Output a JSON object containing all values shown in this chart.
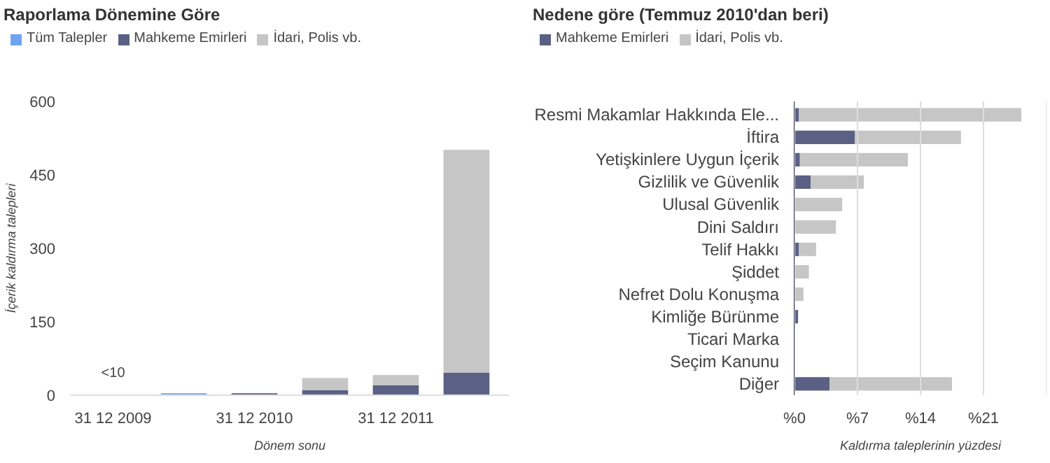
{
  "chart_data": [
    {
      "type": "bar",
      "title": "Raporlama Dönemine Göre",
      "xlabel": "Dönem sonu",
      "ylabel": "İçerik kaldırma talepleri",
      "stacked": true,
      "legend": "top",
      "grid": false,
      "categories": [
        "31 12 2009",
        null,
        "31 12 2010",
        null,
        "31 12 2011",
        null
      ],
      "series": [
        {
          "name": "Tüm Talepler",
          "color": "#6fa3f2",
          "values": [
            null,
            4,
            null,
            null,
            null,
            null
          ]
        },
        {
          "name": "Mahkeme Emirleri",
          "color": "#5a6185",
          "values": [
            null,
            null,
            4,
            10,
            20,
            46
          ]
        },
        {
          "name": "İdari, Polis vb.",
          "color": "#c6c6c6",
          "values": [
            null,
            null,
            null,
            25,
            21,
            455
          ]
        }
      ],
      "ylim": [
        0,
        600
      ],
      "yticks": [
        0,
        150,
        300,
        450,
        600
      ],
      "annotations": [
        "<10"
      ]
    },
    {
      "type": "bar",
      "title": "Nedene göre (Temmuz 2010'dan beri)",
      "xlabel": "Kaldırma taleplerinin yüzdesi",
      "stacked": true,
      "orientation": "horizontal",
      "legend": "top",
      "grid": "x",
      "categories": [
        "Resmi Makamlar Hakkında Ele...",
        "İftira",
        "Yetişkinlere Uygun İçerik",
        "Gizlilik ve Güvenlik",
        "Ulusal Güvenlik",
        "Dini Saldırı",
        "Telif Hakkı",
        "Şiddet",
        "Nefret Dolu Konuşma",
        "Kimliğe Bürünme",
        "Ticari Marka",
        "Seçim Kanunu",
        "Diğer"
      ],
      "series": [
        {
          "name": "Mahkeme Emirleri",
          "color": "#5a6185",
          "values": [
            0.5,
            6.7,
            0.6,
            1.8,
            0,
            0,
            0.5,
            0,
            0,
            0.4,
            0,
            0,
            3.9
          ]
        },
        {
          "name": "İdari, Polis vb.",
          "color": "#c6c6c6",
          "values": [
            24.7,
            11.8,
            12.0,
            5.9,
            5.3,
            4.6,
            1.9,
            1.6,
            1.0,
            0,
            null,
            0,
            13.6
          ]
        }
      ],
      "xlim": [
        0,
        28
      ],
      "xticks": [
        {
          "value": 0,
          "label": "%0"
        },
        {
          "value": 7,
          "label": "%7"
        },
        {
          "value": 14,
          "label": "%14"
        },
        {
          "value": 21,
          "label": "%21"
        },
        {
          "value": 28,
          "label": null
        }
      ]
    }
  ]
}
